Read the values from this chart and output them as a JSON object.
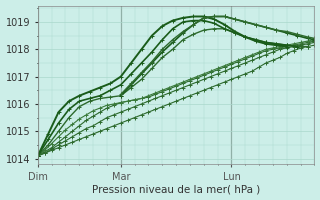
{
  "background_color": "#cceee8",
  "grid_color": "#aad8cc",
  "line_color_dark": "#1a5c1a",
  "line_color_mid": "#2d7a2d",
  "line_color_light": "#3d8a3d",
  "xlabel": "Pression niveau de la mer( hPa )",
  "xtick_labels": [
    "Dim",
    "Mar",
    "Lun"
  ],
  "xtick_positions": [
    0,
    24,
    56
  ],
  "ylim": [
    1013.8,
    1019.6
  ],
  "yticks": [
    1014,
    1015,
    1016,
    1017,
    1018,
    1019
  ],
  "total_hours": 80,
  "series": [
    {
      "x": [
        0,
        2,
        4,
        6,
        8,
        10,
        12,
        14,
        16,
        18,
        20,
        22,
        24,
        26,
        28,
        30,
        32,
        34,
        36,
        38,
        40,
        42,
        44,
        46,
        48,
        50,
        52,
        54,
        56,
        58,
        60,
        62,
        64,
        66,
        68,
        70,
        72,
        74,
        76,
        78,
        80
      ],
      "y": [
        1014.1,
        1014.2,
        1014.3,
        1014.4,
        1014.5,
        1014.6,
        1014.7,
        1014.8,
        1014.9,
        1015.0,
        1015.1,
        1015.2,
        1015.3,
        1015.4,
        1015.5,
        1015.6,
        1015.7,
        1015.8,
        1015.9,
        1016.0,
        1016.1,
        1016.2,
        1016.3,
        1016.4,
        1016.5,
        1016.6,
        1016.7,
        1016.8,
        1016.9,
        1017.0,
        1017.1,
        1017.2,
        1017.35,
        1017.5,
        1017.6,
        1017.7,
        1017.85,
        1017.95,
        1018.05,
        1018.1,
        1018.15
      ],
      "lw": 0.8,
      "color": "#2d6a2d"
    },
    {
      "x": [
        0,
        2,
        4,
        6,
        8,
        10,
        12,
        14,
        16,
        18,
        20,
        22,
        24,
        26,
        28,
        30,
        32,
        34,
        36,
        38,
        40,
        42,
        44,
        46,
        48,
        50,
        52,
        54,
        56,
        58,
        60,
        62,
        64,
        66,
        68,
        70,
        72,
        74,
        76,
        78,
        80
      ],
      "y": [
        1014.1,
        1014.2,
        1014.35,
        1014.5,
        1014.65,
        1014.8,
        1014.95,
        1015.1,
        1015.2,
        1015.35,
        1015.5,
        1015.6,
        1015.7,
        1015.8,
        1015.9,
        1016.0,
        1016.1,
        1016.2,
        1016.3,
        1016.4,
        1016.5,
        1016.6,
        1016.7,
        1016.8,
        1016.9,
        1017.0,
        1017.1,
        1017.2,
        1017.3,
        1017.4,
        1017.5,
        1017.6,
        1017.7,
        1017.8,
        1017.9,
        1018.0,
        1018.05,
        1018.1,
        1018.15,
        1018.2,
        1018.25
      ],
      "lw": 0.8,
      "color": "#2d6a2d"
    },
    {
      "x": [
        0,
        2,
        4,
        6,
        8,
        10,
        12,
        14,
        16,
        18,
        20,
        22,
        24,
        26,
        28,
        30,
        32,
        34,
        36,
        38,
        40,
        42,
        44,
        46,
        48,
        50,
        52,
        54,
        56,
        58,
        60,
        62,
        64,
        66,
        68,
        70,
        72,
        74,
        76,
        78,
        80
      ],
      "y": [
        1014.1,
        1014.25,
        1014.4,
        1014.6,
        1014.8,
        1015.0,
        1015.2,
        1015.4,
        1015.55,
        1015.7,
        1015.85,
        1015.95,
        1016.05,
        1016.1,
        1016.15,
        1016.2,
        1016.25,
        1016.35,
        1016.45,
        1016.55,
        1016.65,
        1016.75,
        1016.85,
        1016.95,
        1017.05,
        1017.15,
        1017.25,
        1017.35,
        1017.45,
        1017.55,
        1017.65,
        1017.75,
        1017.85,
        1017.95,
        1018.0,
        1018.05,
        1018.1,
        1018.15,
        1018.2,
        1018.25,
        1018.3
      ],
      "lw": 0.8,
      "color": "#2d6a2d"
    },
    {
      "x": [
        0,
        2,
        4,
        6,
        8,
        10,
        12,
        14,
        16,
        18,
        20,
        22,
        24,
        26,
        28,
        30,
        32,
        34,
        36,
        38,
        40,
        42,
        44,
        46,
        48,
        50,
        52,
        54,
        56,
        58,
        60,
        62,
        64,
        66,
        68,
        70,
        72,
        74,
        76,
        78,
        80
      ],
      "y": [
        1014.1,
        1014.3,
        1014.55,
        1014.8,
        1015.05,
        1015.25,
        1015.45,
        1015.6,
        1015.75,
        1015.85,
        1015.95,
        1016.0,
        1016.05,
        1016.1,
        1016.15,
        1016.2,
        1016.3,
        1016.4,
        1016.5,
        1016.6,
        1016.7,
        1016.8,
        1016.9,
        1017.0,
        1017.1,
        1017.2,
        1017.3,
        1017.4,
        1017.5,
        1017.6,
        1017.7,
        1017.8,
        1017.9,
        1018.0,
        1018.05,
        1018.1,
        1018.15,
        1018.2,
        1018.25,
        1018.3,
        1018.35
      ],
      "lw": 0.8,
      "color": "#3a7a3a"
    },
    {
      "x": [
        0,
        3,
        6,
        9,
        12,
        15,
        18,
        21,
        24,
        27,
        30,
        33,
        36,
        39,
        42,
        45,
        48,
        51,
        54,
        57,
        60,
        63,
        66,
        69,
        72,
        75,
        78
      ],
      "y": [
        1014.1,
        1014.5,
        1015.0,
        1015.5,
        1015.9,
        1016.1,
        1016.2,
        1016.25,
        1016.3,
        1016.6,
        1016.9,
        1017.3,
        1017.7,
        1018.0,
        1018.35,
        1018.55,
        1018.7,
        1018.75,
        1018.75,
        1018.6,
        1018.45,
        1018.35,
        1018.25,
        1018.2,
        1018.15,
        1018.1,
        1018.1
      ],
      "lw": 1.0,
      "color": "#2d6a2d"
    },
    {
      "x": [
        0,
        3,
        6,
        9,
        12,
        15,
        18,
        21,
        24,
        27,
        30,
        33,
        36,
        39,
        42,
        45,
        48,
        51,
        54,
        57,
        60,
        63,
        66,
        69,
        72,
        75
      ],
      "y": [
        1014.1,
        1014.7,
        1015.3,
        1015.8,
        1016.1,
        1016.2,
        1016.3,
        1016.5,
        1016.7,
        1017.1,
        1017.5,
        1017.9,
        1018.35,
        1018.75,
        1019.0,
        1019.05,
        1019.05,
        1018.95,
        1018.75,
        1018.6,
        1018.45,
        1018.35,
        1018.25,
        1018.2,
        1018.15,
        1018.1
      ],
      "lw": 1.2,
      "color": "#1a5c1a"
    },
    {
      "x": [
        0,
        3,
        6,
        9,
        12,
        15,
        18,
        21,
        24,
        27,
        30,
        33,
        36,
        39,
        42,
        45,
        48,
        51,
        54,
        57,
        60,
        63,
        66,
        69,
        72
      ],
      "y": [
        1014.1,
        1014.9,
        1015.7,
        1016.1,
        1016.3,
        1016.45,
        1016.6,
        1016.75,
        1017.0,
        1017.5,
        1018.0,
        1018.5,
        1018.85,
        1019.05,
        1019.15,
        1019.2,
        1019.2,
        1019.1,
        1018.9,
        1018.65,
        1018.45,
        1018.3,
        1018.2,
        1018.15,
        1018.1
      ],
      "lw": 1.4,
      "color": "#1a5c1a"
    },
    {
      "x": [
        24,
        27,
        30,
        33,
        36,
        39,
        42,
        45,
        48,
        51,
        54,
        57,
        60,
        63,
        66,
        69,
        72,
        75,
        78,
        80
      ],
      "y": [
        1016.3,
        1016.7,
        1017.1,
        1017.5,
        1017.9,
        1018.25,
        1018.6,
        1018.9,
        1019.15,
        1019.2,
        1019.2,
        1019.1,
        1019.0,
        1018.9,
        1018.8,
        1018.7,
        1018.6,
        1018.5,
        1018.4,
        1018.35
      ],
      "lw": 1.2,
      "color": "#1a5c1a"
    },
    {
      "x": [
        24,
        27,
        30,
        33,
        36,
        39,
        42,
        45,
        48,
        51,
        54,
        57,
        60,
        63,
        66,
        69,
        72,
        75,
        78,
        80
      ],
      "y": [
        1016.35,
        1016.75,
        1017.15,
        1017.55,
        1018.0,
        1018.35,
        1018.65,
        1018.9,
        1019.15,
        1019.2,
        1019.2,
        1019.1,
        1019.0,
        1018.9,
        1018.8,
        1018.7,
        1018.65,
        1018.55,
        1018.45,
        1018.4
      ],
      "lw": 1.0,
      "color": "#2d6a2d"
    }
  ]
}
